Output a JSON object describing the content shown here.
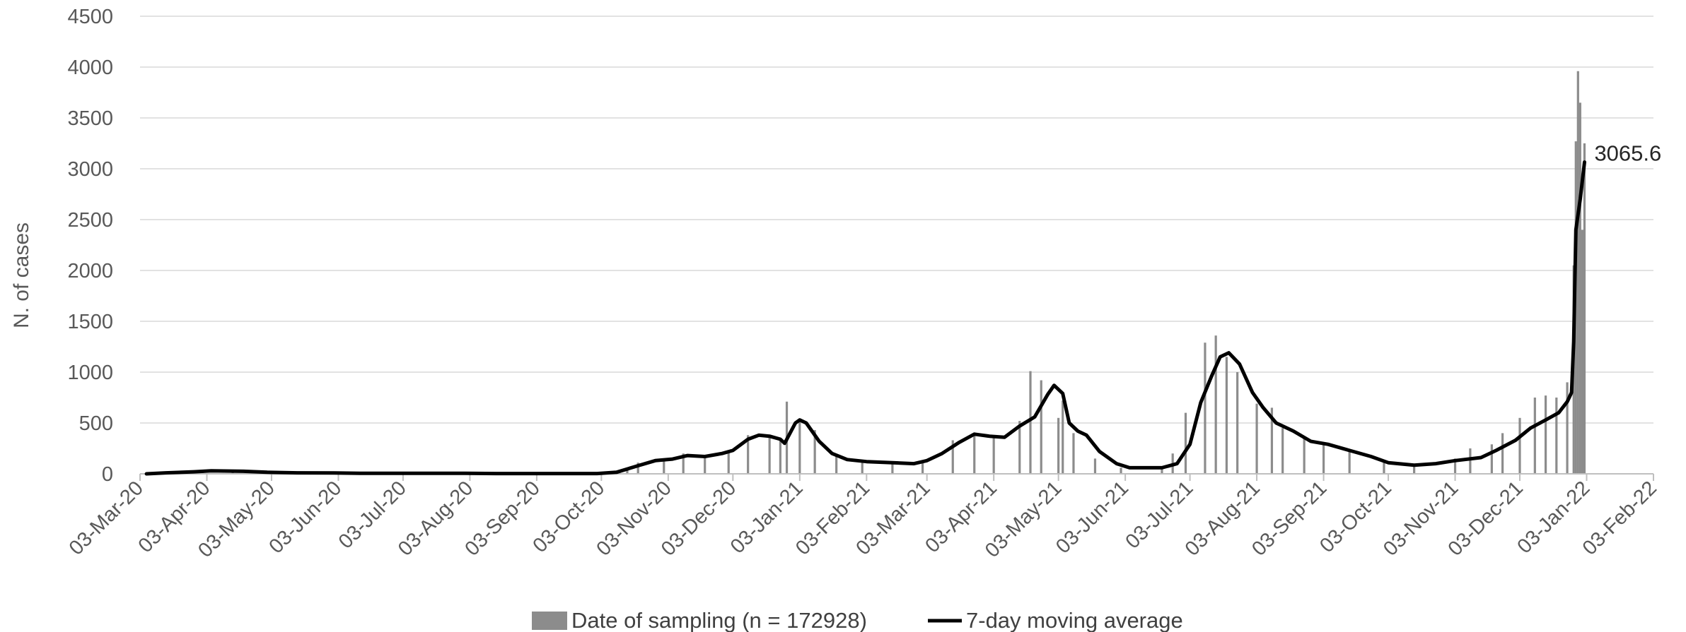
{
  "chart_data": {
    "type": "bar",
    "title": "",
    "xlabel": "",
    "ylabel": "N. of cases",
    "ylim": [
      0,
      4500
    ],
    "yticks": [
      0,
      500,
      1000,
      1500,
      2000,
      2500,
      3000,
      3500,
      4000,
      4500
    ],
    "xlim": [
      "2020-03-03",
      "2022-02-03"
    ],
    "xticks": [
      "03-Mar-20",
      "03-Apr-20",
      "03-May-20",
      "03-Jun-20",
      "03-Jul-20",
      "03-Aug-20",
      "03-Sep-20",
      "03-Oct-20",
      "03-Nov-20",
      "03-Dec-20",
      "03-Jan-21",
      "03-Feb-21",
      "03-Mar-21",
      "03-Apr-21",
      "03-May-21",
      "03-Jun-21",
      "03-Jul-21",
      "03-Aug-21",
      "03-Sep-21",
      "03-Oct-21",
      "03-Nov-21",
      "03-Dec-21",
      "03-Jan-22",
      "03-Feb-22"
    ],
    "grid": true,
    "legend": "bottom",
    "colors": {
      "bars": "#8c8c8c",
      "line": "#000000",
      "grid": "#d9d9d9",
      "axis": "#bfbfbf"
    },
    "series": [
      {
        "name": "Date of sampling (n = 172928)",
        "kind": "bar",
        "sampled_values": [
          [
            "2020-03-10",
            5
          ],
          [
            "2020-03-20",
            15
          ],
          [
            "2020-04-01",
            25
          ],
          [
            "2020-04-15",
            22
          ],
          [
            "2020-05-01",
            10
          ],
          [
            "2020-06-01",
            8
          ],
          [
            "2020-07-01",
            6
          ],
          [
            "2020-08-01",
            5
          ],
          [
            "2020-09-01",
            3
          ],
          [
            "2020-10-01",
            5
          ],
          [
            "2020-10-15",
            60
          ],
          [
            "2020-10-20",
            110
          ],
          [
            "2020-11-01",
            150
          ],
          [
            "2020-11-10",
            200
          ],
          [
            "2020-11-20",
            170
          ],
          [
            "2020-12-01",
            230
          ],
          [
            "2020-12-10",
            380
          ],
          [
            "2020-12-20",
            370
          ],
          [
            "2020-12-25",
            330
          ],
          [
            "2020-12-28",
            710
          ],
          [
            "2021-01-03",
            530
          ],
          [
            "2021-01-10",
            430
          ],
          [
            "2021-01-20",
            170
          ],
          [
            "2021-02-01",
            110
          ],
          [
            "2021-02-15",
            110
          ],
          [
            "2021-03-01",
            120
          ],
          [
            "2021-03-15",
            330
          ],
          [
            "2021-03-25",
            400
          ],
          [
            "2021-04-03",
            360
          ],
          [
            "2021-04-15",
            520
          ],
          [
            "2021-04-20",
            1010
          ],
          [
            "2021-04-25",
            920
          ],
          [
            "2021-05-03",
            550
          ],
          [
            "2021-05-05",
            720
          ],
          [
            "2021-05-10",
            400
          ],
          [
            "2021-05-20",
            150
          ],
          [
            "2021-06-01",
            60
          ],
          [
            "2021-06-20",
            70
          ],
          [
            "2021-06-25",
            200
          ],
          [
            "2021-07-01",
            600
          ],
          [
            "2021-07-10",
            1290
          ],
          [
            "2021-07-15",
            1360
          ],
          [
            "2021-07-20",
            1150
          ],
          [
            "2021-07-25",
            1000
          ],
          [
            "2021-08-03",
            690
          ],
          [
            "2021-08-10",
            650
          ],
          [
            "2021-08-15",
            450
          ],
          [
            "2021-08-25",
            350
          ],
          [
            "2021-09-03",
            300
          ],
          [
            "2021-09-15",
            230
          ],
          [
            "2021-10-01",
            110
          ],
          [
            "2021-10-15",
            90
          ],
          [
            "2021-11-03",
            150
          ],
          [
            "2021-11-10",
            250
          ],
          [
            "2021-11-20",
            290
          ],
          [
            "2021-11-25",
            400
          ],
          [
            "2021-12-03",
            550
          ],
          [
            "2021-12-10",
            750
          ],
          [
            "2021-12-15",
            770
          ],
          [
            "2021-12-20",
            750
          ],
          [
            "2021-12-25",
            900
          ],
          [
            "2021-12-28",
            2050
          ],
          [
            "2021-12-29",
            3270
          ],
          [
            "2021-12-30",
            3960
          ],
          [
            "2021-12-31",
            3650
          ],
          [
            "2022-01-01",
            2400
          ],
          [
            "2022-01-02",
            3250
          ]
        ]
      },
      {
        "name": "7-day moving average",
        "kind": "line",
        "points": [
          [
            "2020-03-06",
            0
          ],
          [
            "2020-03-15",
            10
          ],
          [
            "2020-03-28",
            20
          ],
          [
            "2020-04-05",
            30
          ],
          [
            "2020-04-20",
            25
          ],
          [
            "2020-05-01",
            15
          ],
          [
            "2020-05-15",
            10
          ],
          [
            "2020-06-01",
            8
          ],
          [
            "2020-06-15",
            5
          ],
          [
            "2020-07-01",
            5
          ],
          [
            "2020-07-15",
            5
          ],
          [
            "2020-08-01",
            5
          ],
          [
            "2020-08-15",
            3
          ],
          [
            "2020-09-01",
            3
          ],
          [
            "2020-09-15",
            3
          ],
          [
            "2020-10-01",
            3
          ],
          [
            "2020-10-10",
            15
          ],
          [
            "2020-10-20",
            80
          ],
          [
            "2020-10-28",
            130
          ],
          [
            "2020-11-05",
            145
          ],
          [
            "2020-11-12",
            180
          ],
          [
            "2020-11-20",
            170
          ],
          [
            "2020-11-28",
            200
          ],
          [
            "2020-12-03",
            230
          ],
          [
            "2020-12-10",
            340
          ],
          [
            "2020-12-15",
            380
          ],
          [
            "2020-12-20",
            370
          ],
          [
            "2020-12-25",
            340
          ],
          [
            "2020-12-27",
            300
          ],
          [
            "2021-01-01",
            500
          ],
          [
            "2021-01-03",
            530
          ],
          [
            "2021-01-06",
            500
          ],
          [
            "2021-01-12",
            320
          ],
          [
            "2021-01-18",
            200
          ],
          [
            "2021-01-25",
            140
          ],
          [
            "2021-02-03",
            120
          ],
          [
            "2021-02-15",
            110
          ],
          [
            "2021-02-25",
            100
          ],
          [
            "2021-03-03",
            130
          ],
          [
            "2021-03-10",
            200
          ],
          [
            "2021-03-18",
            310
          ],
          [
            "2021-03-25",
            390
          ],
          [
            "2021-04-01",
            370
          ],
          [
            "2021-04-08",
            360
          ],
          [
            "2021-04-15",
            470
          ],
          [
            "2021-04-22",
            560
          ],
          [
            "2021-04-28",
            780
          ],
          [
            "2021-05-01",
            870
          ],
          [
            "2021-05-05",
            790
          ],
          [
            "2021-05-08",
            500
          ],
          [
            "2021-05-12",
            420
          ],
          [
            "2021-05-16",
            380
          ],
          [
            "2021-05-22",
            220
          ],
          [
            "2021-05-30",
            100
          ],
          [
            "2021-06-05",
            60
          ],
          [
            "2021-06-20",
            60
          ],
          [
            "2021-06-27",
            100
          ],
          [
            "2021-07-03",
            290
          ],
          [
            "2021-07-08",
            700
          ],
          [
            "2021-07-13",
            960
          ],
          [
            "2021-07-17",
            1150
          ],
          [
            "2021-07-21",
            1190
          ],
          [
            "2021-07-26",
            1080
          ],
          [
            "2021-08-01",
            800
          ],
          [
            "2021-08-06",
            650
          ],
          [
            "2021-08-12",
            500
          ],
          [
            "2021-08-20",
            420
          ],
          [
            "2021-08-28",
            320
          ],
          [
            "2021-09-05",
            290
          ],
          [
            "2021-09-15",
            230
          ],
          [
            "2021-09-25",
            170
          ],
          [
            "2021-10-03",
            110
          ],
          [
            "2021-10-15",
            85
          ],
          [
            "2021-10-25",
            100
          ],
          [
            "2021-11-03",
            130
          ],
          [
            "2021-11-15",
            160
          ],
          [
            "2021-11-22",
            230
          ],
          [
            "2021-12-01",
            330
          ],
          [
            "2021-12-08",
            450
          ],
          [
            "2021-12-15",
            530
          ],
          [
            "2021-12-21",
            600
          ],
          [
            "2021-12-25",
            710
          ],
          [
            "2021-12-27",
            800
          ],
          [
            "2021-12-28",
            1300
          ],
          [
            "2021-12-29",
            2400
          ],
          [
            "2021-12-31",
            2700
          ],
          [
            "2022-01-02",
            3065.6
          ]
        ]
      }
    ],
    "annotations": [
      {
        "text": "3065.6",
        "x": "2022-01-02",
        "y": 3065.6
      }
    ]
  }
}
